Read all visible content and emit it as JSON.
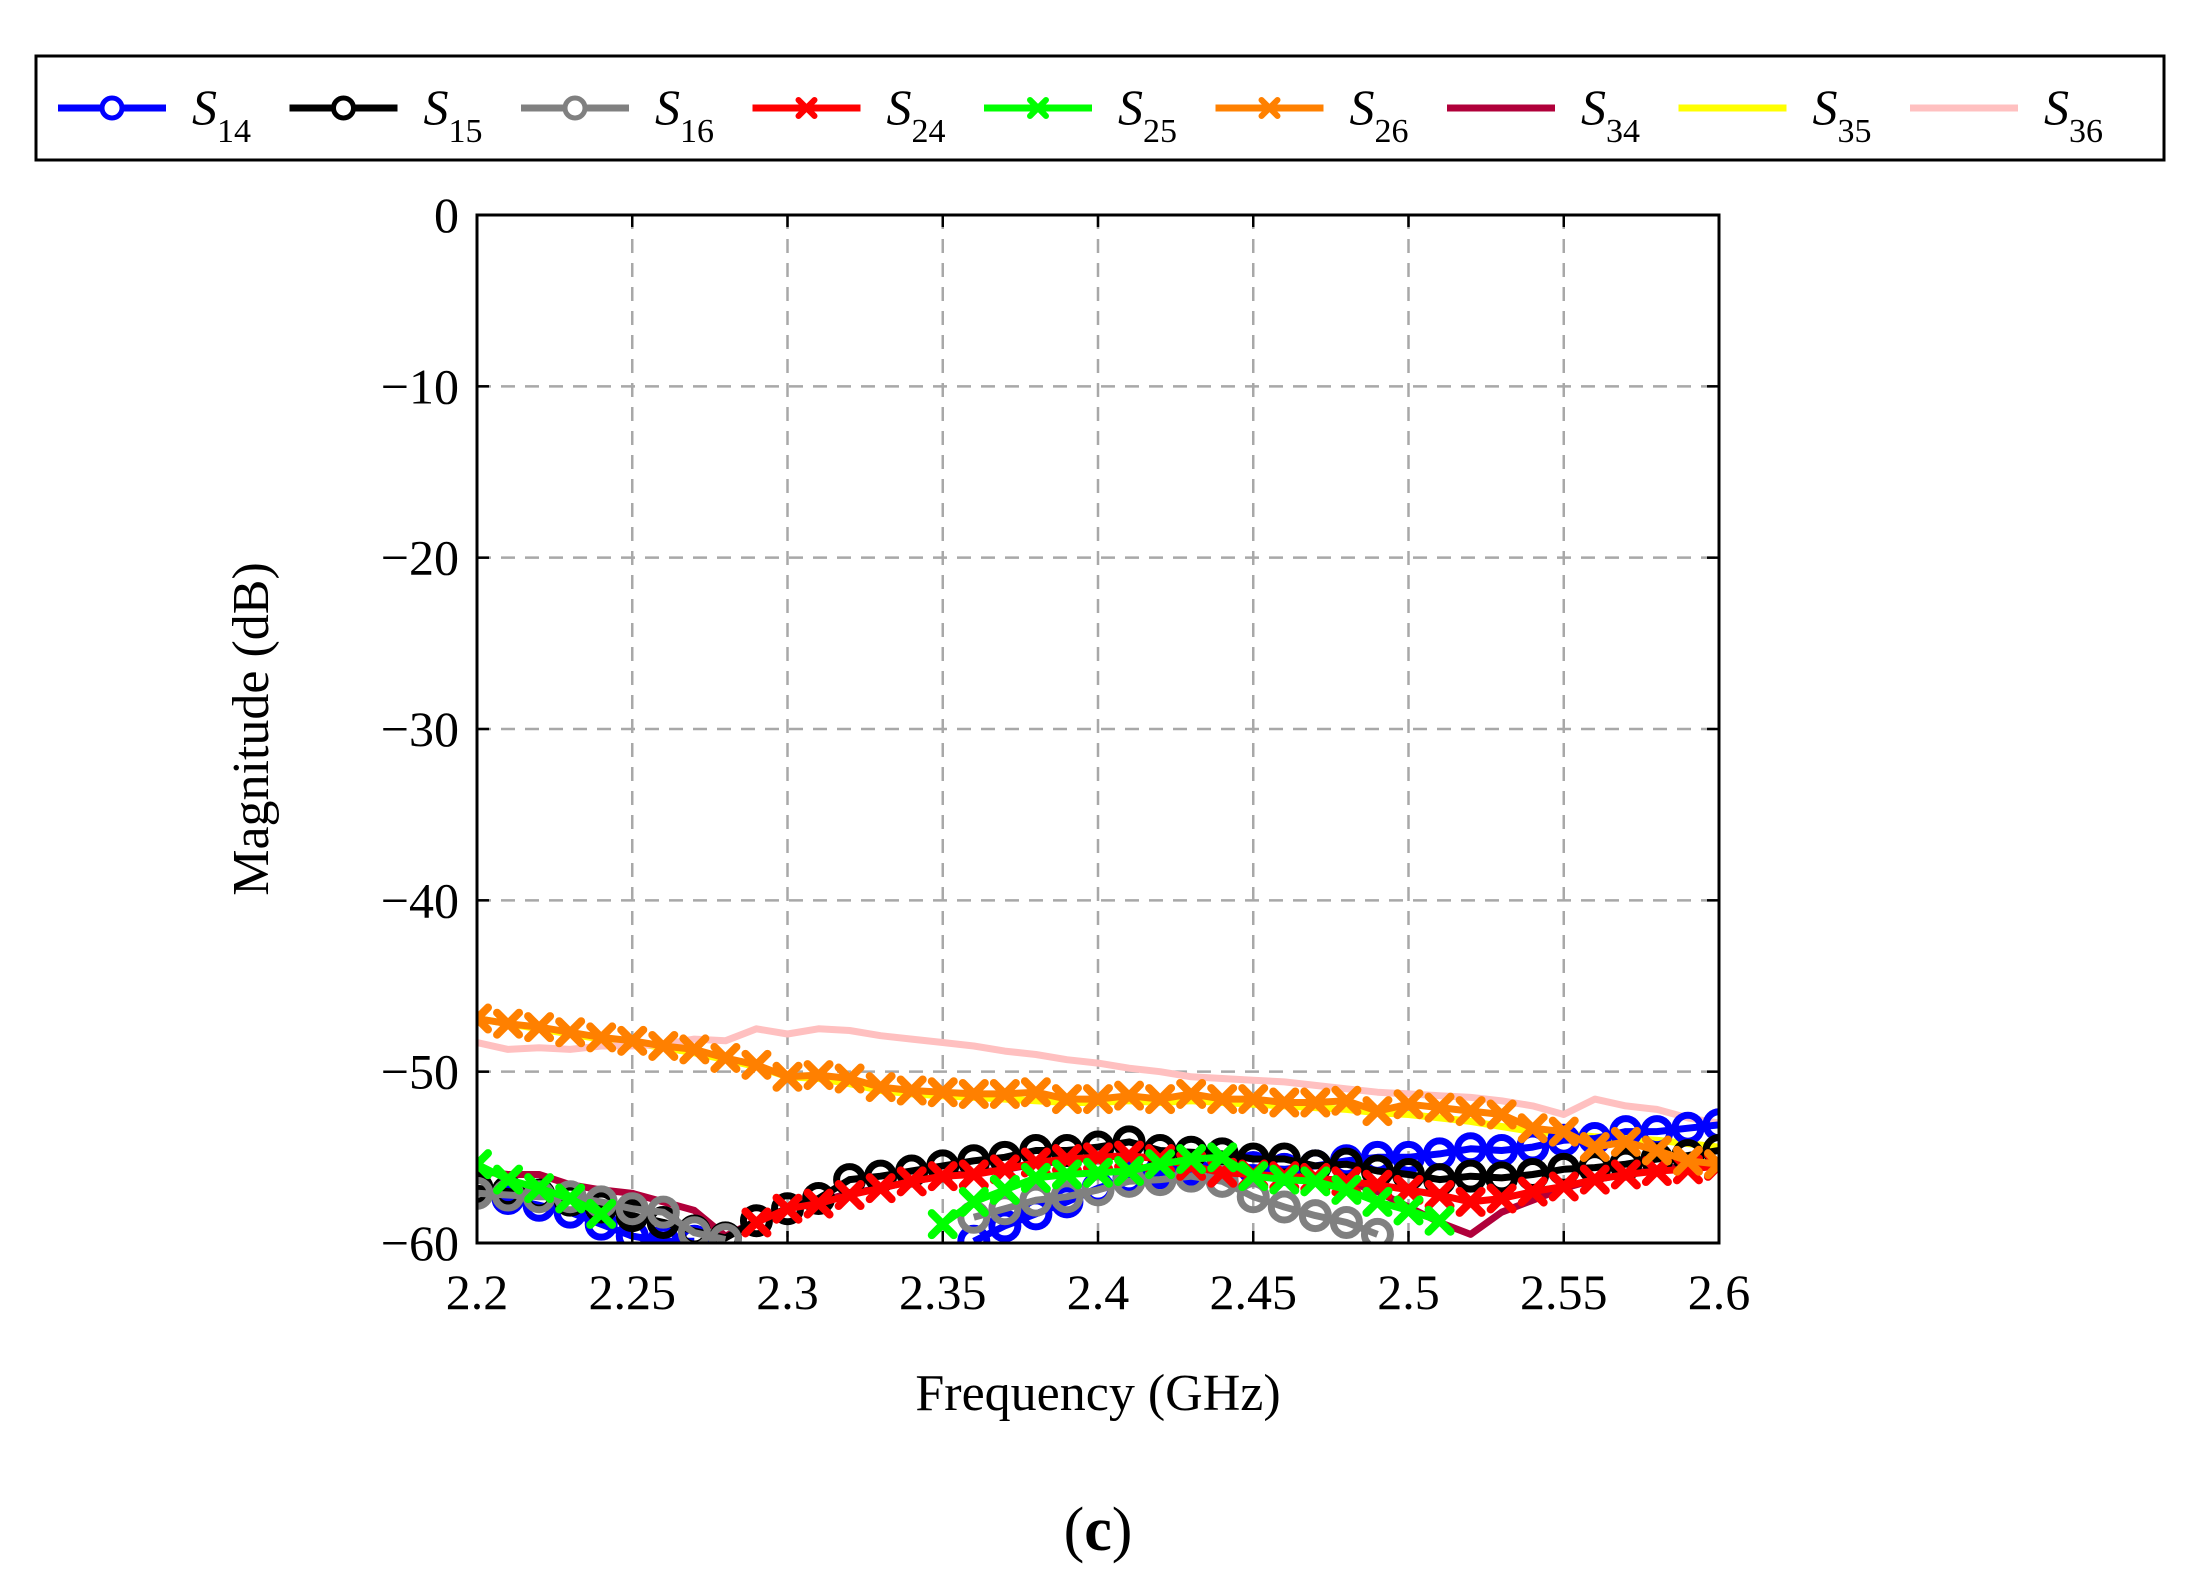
{
  "chart_data": {
    "type": "line",
    "panel_label": {
      "open": "(",
      "letter": "c",
      "close": ")"
    },
    "xlabel": "Frequency (GHz)",
    "ylabel": "Magnitude (dB)",
    "xlim": [
      2.2,
      2.6
    ],
    "ylim": [
      -60,
      0
    ],
    "xticks": [
      2.2,
      2.25,
      2.3,
      2.35,
      2.4,
      2.45,
      2.5,
      2.55,
      2.6
    ],
    "xtick_labels": [
      "2.2",
      "2.25",
      "2.3",
      "2.35",
      "2.4",
      "2.45",
      "2.5",
      "2.55",
      "2.6"
    ],
    "yticks": [
      0,
      -10,
      -20,
      -30,
      -40,
      -50,
      -60
    ],
    "ytick_labels": [
      "0",
      "−10",
      "−20",
      "−30",
      "−40",
      "−50",
      "−60"
    ],
    "grid": true,
    "legend_position": "top (above plot, single row)",
    "series": [
      {
        "name": "S14",
        "base": "S",
        "sub": "14",
        "color": "#0000ff",
        "marker": "circle",
        "x": [
          2.2,
          2.21,
          2.22,
          2.23,
          2.24,
          2.25,
          2.26,
          2.27,
          2.36,
          2.37,
          2.38,
          2.39,
          2.4,
          2.41,
          2.42,
          2.43,
          2.44,
          2.45,
          2.46,
          2.47,
          2.48,
          2.49,
          2.5,
          2.51,
          2.52,
          2.53,
          2.54,
          2.55,
          2.56,
          2.57,
          2.58,
          2.59,
          2.6
        ],
        "values": [
          -57.0,
          -57.4,
          -57.8,
          -58.2,
          -58.9,
          -59.6,
          -59.9,
          -59.9,
          -59.9,
          -59.0,
          -58.3,
          -57.6,
          -56.8,
          -56.2,
          -55.9,
          -55.7,
          -55.6,
          -55.6,
          -55.7,
          -55.5,
          -55.2,
          -55.0,
          -55.0,
          -54.8,
          -54.5,
          -54.6,
          -54.4,
          -54.0,
          -53.9,
          -53.5,
          -53.5,
          -53.3,
          -53.1
        ]
      },
      {
        "name": "S15",
        "base": "S",
        "sub": "15",
        "color": "#000000",
        "marker": "circle",
        "x": [
          2.2,
          2.21,
          2.22,
          2.23,
          2.24,
          2.25,
          2.26,
          2.27,
          2.28,
          2.29,
          2.3,
          2.31,
          2.32,
          2.33,
          2.34,
          2.35,
          2.36,
          2.37,
          2.38,
          2.39,
          2.4,
          2.41,
          2.42,
          2.43,
          2.44,
          2.45,
          2.46,
          2.47,
          2.48,
          2.49,
          2.5,
          2.51,
          2.52,
          2.53,
          2.54,
          2.55,
          2.56,
          2.57,
          2.58,
          2.59,
          2.6
        ],
        "values": [
          -56.8,
          -57.0,
          -57.2,
          -57.5,
          -57.9,
          -58.4,
          -58.8,
          -59.3,
          -59.7,
          -58.7,
          -58.0,
          -57.4,
          -56.3,
          -56.1,
          -55.8,
          -55.5,
          -55.2,
          -55.0,
          -54.6,
          -54.6,
          -54.4,
          -54.1,
          -54.6,
          -54.7,
          -54.8,
          -55.1,
          -55.1,
          -55.5,
          -55.4,
          -55.8,
          -56.0,
          -56.3,
          -56.1,
          -56.2,
          -56.0,
          -55.7,
          -55.6,
          -55.4,
          -55.1,
          -54.9,
          -54.6
        ]
      },
      {
        "name": "S16",
        "base": "S",
        "sub": "16",
        "color": "#808080",
        "marker": "circle",
        "x": [
          2.2,
          2.21,
          2.22,
          2.23,
          2.24,
          2.25,
          2.26,
          2.27,
          2.28,
          2.36,
          2.37,
          2.38,
          2.39,
          2.4,
          2.41,
          2.42,
          2.43,
          2.44,
          2.45,
          2.46,
          2.47,
          2.48,
          2.49
        ],
        "values": [
          -57.1,
          -57.2,
          -57.3,
          -57.3,
          -57.6,
          -58.0,
          -58.2,
          -59.4,
          -59.8,
          -58.5,
          -58.0,
          -57.5,
          -57.3,
          -56.9,
          -56.4,
          -56.3,
          -56.1,
          -56.4,
          -57.3,
          -57.9,
          -58.4,
          -58.8,
          -59.5
        ]
      },
      {
        "name": "S24",
        "base": "S",
        "sub": "24",
        "color": "#ff0000",
        "marker": "x",
        "x": [
          2.29,
          2.3,
          2.31,
          2.32,
          2.33,
          2.34,
          2.35,
          2.36,
          2.37,
          2.38,
          2.39,
          2.4,
          2.41,
          2.42,
          2.43,
          2.44,
          2.45,
          2.46,
          2.47,
          2.48,
          2.49,
          2.5,
          2.51,
          2.52,
          2.53,
          2.54,
          2.55,
          2.56,
          2.57,
          2.58,
          2.59,
          2.6
        ],
        "values": [
          -58.8,
          -58.0,
          -57.7,
          -57.2,
          -56.8,
          -56.4,
          -56.1,
          -56.0,
          -55.7,
          -55.3,
          -55.1,
          -55.0,
          -54.9,
          -55.1,
          -55.5,
          -55.9,
          -56.0,
          -56.1,
          -56.2,
          -56.4,
          -56.6,
          -56.9,
          -57.2,
          -57.6,
          -57.4,
          -57.0,
          -56.7,
          -56.3,
          -56.0,
          -55.8,
          -55.7,
          -55.5
        ]
      },
      {
        "name": "S25",
        "base": "S",
        "sub": "25",
        "color": "#00ff00",
        "marker": "x",
        "x": [
          2.2,
          2.21,
          2.22,
          2.23,
          2.24,
          2.35,
          2.36,
          2.37,
          2.38,
          2.39,
          2.4,
          2.41,
          2.42,
          2.43,
          2.44,
          2.45,
          2.46,
          2.47,
          2.48,
          2.49,
          2.5,
          2.51
        ],
        "values": [
          -55.4,
          -56.3,
          -56.8,
          -57.4,
          -58.3,
          -58.9,
          -57.6,
          -56.9,
          -56.2,
          -56.0,
          -55.9,
          -55.8,
          -55.4,
          -55.1,
          -55.0,
          -56.1,
          -56.3,
          -56.4,
          -56.9,
          -57.6,
          -58.1,
          -58.7
        ]
      },
      {
        "name": "S26",
        "base": "S",
        "sub": "26",
        "color": "#ff8000",
        "marker": "x",
        "x": [
          2.2,
          2.21,
          2.22,
          2.23,
          2.24,
          2.25,
          2.26,
          2.27,
          2.28,
          2.29,
          2.3,
          2.31,
          2.32,
          2.33,
          2.34,
          2.35,
          2.36,
          2.37,
          2.38,
          2.39,
          2.4,
          2.41,
          2.42,
          2.43,
          2.44,
          2.45,
          2.46,
          2.47,
          2.48,
          2.49,
          2.5,
          2.51,
          2.52,
          2.53,
          2.54,
          2.55,
          2.56,
          2.57,
          2.58,
          2.59,
          2.6
        ],
        "values": [
          -46.9,
          -47.2,
          -47.4,
          -47.7,
          -48.0,
          -48.2,
          -48.5,
          -48.7,
          -49.2,
          -49.6,
          -50.3,
          -50.2,
          -50.4,
          -50.9,
          -51.1,
          -51.2,
          -51.3,
          -51.3,
          -51.2,
          -51.6,
          -51.6,
          -51.4,
          -51.6,
          -51.3,
          -51.6,
          -51.6,
          -51.8,
          -51.8,
          -51.7,
          -52.3,
          -51.9,
          -52.1,
          -52.3,
          -52.5,
          -53.3,
          -53.5,
          -54.4,
          -54.1,
          -54.6,
          -55.2,
          -55.4
        ]
      },
      {
        "name": "S34",
        "base": "S",
        "sub": "34",
        "color": "#b0003a",
        "marker": "none",
        "x": [
          2.2,
          2.21,
          2.22,
          2.23,
          2.24,
          2.25,
          2.26,
          2.27,
          2.28,
          2.29,
          2.3,
          2.31,
          2.32,
          2.33,
          2.34,
          2.35,
          2.36,
          2.37,
          2.38,
          2.39,
          2.4,
          2.41,
          2.42,
          2.43,
          2.44,
          2.45,
          2.46,
          2.47,
          2.48,
          2.49,
          2.5,
          2.51,
          2.52,
          2.53,
          2.54,
          2.55,
          2.56,
          2.57,
          2.58,
          2.59,
          2.6
        ],
        "values": [
          -55.8,
          -56.0,
          -56.0,
          -56.6,
          -56.9,
          -57.1,
          -57.6,
          -58.1,
          -59.6,
          -58.7,
          -58.0,
          -57.6,
          -57.1,
          -56.8,
          -56.4,
          -56.1,
          -55.9,
          -55.7,
          -55.4,
          -55.2,
          -55.0,
          -54.9,
          -55.1,
          -55.3,
          -55.7,
          -55.9,
          -56.1,
          -56.2,
          -56.4,
          -57.0,
          -57.9,
          -58.8,
          -59.5,
          -58.2,
          -57.5,
          -56.8,
          -56.3,
          -56.0,
          -55.7,
          -55.5,
          -55.3
        ]
      },
      {
        "name": "S35",
        "base": "S",
        "sub": "35",
        "color": "#ffff00",
        "marker": "none",
        "x": [
          2.2,
          2.21,
          2.22,
          2.23,
          2.24,
          2.25,
          2.26,
          2.27,
          2.28,
          2.29,
          2.3,
          2.31,
          2.32,
          2.33,
          2.34,
          2.35,
          2.36,
          2.37,
          2.38,
          2.39,
          2.4,
          2.41,
          2.42,
          2.43,
          2.44,
          2.45,
          2.46,
          2.47,
          2.48,
          2.49,
          2.5,
          2.51,
          2.52,
          2.53,
          2.54,
          2.55,
          2.56,
          2.57,
          2.58,
          2.59,
          2.6
        ],
        "values": [
          -46.9,
          -47.2,
          -47.5,
          -47.8,
          -48.1,
          -48.3,
          -48.6,
          -48.9,
          -49.3,
          -49.7,
          -50.3,
          -50.4,
          -50.7,
          -51.1,
          -51.3,
          -51.4,
          -51.5,
          -51.6,
          -51.7,
          -51.8,
          -51.8,
          -51.7,
          -51.8,
          -51.7,
          -51.8,
          -51.9,
          -52.0,
          -52.1,
          -52.2,
          -52.4,
          -52.5,
          -52.7,
          -52.9,
          -53.2,
          -53.5,
          -53.6,
          -53.8,
          -53.9,
          -54.0,
          -54.2,
          -54.4
        ]
      },
      {
        "name": "S36",
        "base": "S",
        "sub": "36",
        "color": "#ffc0c0",
        "marker": "none",
        "x": [
          2.2,
          2.21,
          2.22,
          2.23,
          2.24,
          2.25,
          2.26,
          2.27,
          2.28,
          2.29,
          2.3,
          2.31,
          2.32,
          2.33,
          2.34,
          2.35,
          2.36,
          2.37,
          2.38,
          2.39,
          2.4,
          2.41,
          2.42,
          2.43,
          2.44,
          2.45,
          2.46,
          2.47,
          2.48,
          2.49,
          2.5,
          2.51,
          2.52,
          2.53,
          2.54,
          2.55,
          2.56,
          2.57,
          2.58,
          2.59,
          2.6
        ],
        "values": [
          -48.3,
          -48.7,
          -48.6,
          -48.7,
          -48.5,
          -48.5,
          -48.4,
          -48.1,
          -48.2,
          -47.5,
          -47.8,
          -47.5,
          -47.6,
          -47.9,
          -48.1,
          -48.3,
          -48.5,
          -48.8,
          -49.0,
          -49.3,
          -49.5,
          -49.8,
          -50.0,
          -50.3,
          -50.4,
          -50.5,
          -50.6,
          -50.8,
          -51.0,
          -51.2,
          -51.3,
          -51.4,
          -51.5,
          -51.7,
          -52.0,
          -52.5,
          -51.6,
          -52.0,
          -52.2,
          -52.7,
          -53.0
        ]
      }
    ]
  }
}
